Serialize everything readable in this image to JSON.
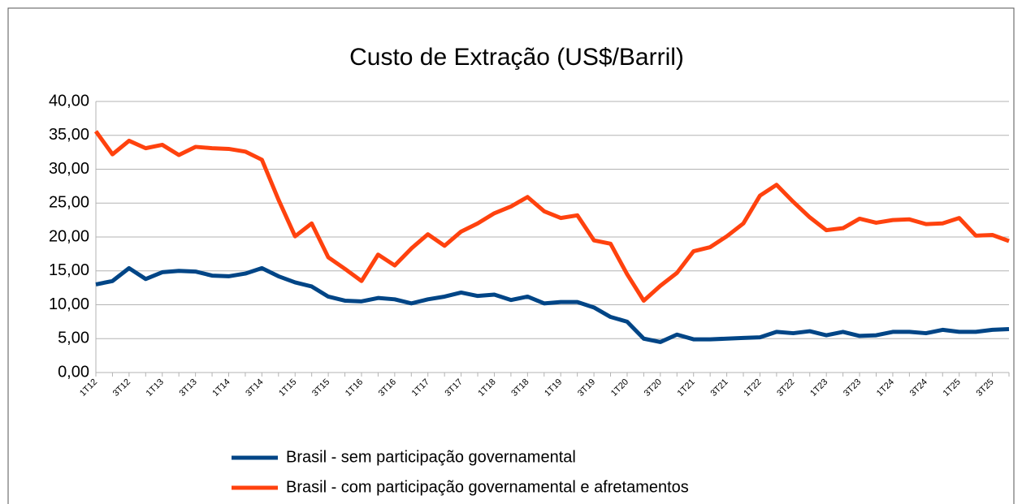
{
  "chart_data": {
    "type": "line",
    "title": "Custo de Extração (US$/Barril)",
    "categories": [
      "1T12",
      null,
      "3T12",
      null,
      "1T13",
      null,
      "3T13",
      null,
      "1T14",
      null,
      "3T14",
      null,
      "1T15",
      null,
      "3T15",
      null,
      "1T16",
      null,
      "3T16",
      null,
      "1T17",
      null,
      "3T17",
      null,
      "1T18",
      null,
      "3T18",
      null,
      "1T19",
      null,
      "3T19",
      null,
      "1T20",
      null,
      "3T20",
      null,
      "1T21",
      null,
      "3T21",
      null,
      "1T22",
      null,
      "3T22",
      null,
      "1T23",
      null,
      "3T23",
      null,
      "1T24",
      null,
      "3T24",
      null,
      "1T25",
      null,
      "3T25",
      null
    ],
    "series": [
      {
        "name": "Brasil - sem participação governamental",
        "color": "#004586",
        "values": [
          13.0,
          13.5,
          15.4,
          13.8,
          14.8,
          15.0,
          14.9,
          14.3,
          14.2,
          14.6,
          15.4,
          14.2,
          13.3,
          12.7,
          11.2,
          10.6,
          10.5,
          11.0,
          10.8,
          10.2,
          10.8,
          11.2,
          11.8,
          11.3,
          11.5,
          10.7,
          11.2,
          10.2,
          10.4,
          10.4,
          9.6,
          8.2,
          7.5,
          5.0,
          4.5,
          5.6,
          4.9,
          4.9,
          5.0,
          5.1,
          5.2,
          6.0,
          5.8,
          6.1,
          5.5,
          6.0,
          5.4,
          5.5,
          6.0,
          6.0,
          5.8,
          6.3,
          6.0,
          6.0,
          6.3,
          6.4
        ]
      },
      {
        "name": "Brasil - com participação governamental e afretamentos",
        "color": "#ff420e",
        "values": [
          35.6,
          32.2,
          34.2,
          33.1,
          33.6,
          32.1,
          33.3,
          33.1,
          33.0,
          32.6,
          31.4,
          25.5,
          20.1,
          22.0,
          17.0,
          15.3,
          13.5,
          17.4,
          15.8,
          18.3,
          20.4,
          18.7,
          20.8,
          22.0,
          23.5,
          24.5,
          25.9,
          23.8,
          22.8,
          23.2,
          19.5,
          19.0,
          14.5,
          10.6,
          12.8,
          14.7,
          17.9,
          18.5,
          20.1,
          22.0,
          26.1,
          27.7,
          25.2,
          22.9,
          21.0,
          21.3,
          22.7,
          22.1,
          22.5,
          22.6,
          21.9,
          22.0,
          22.8,
          20.2,
          20.3,
          19.4
        ]
      }
    ],
    "ylim": [
      0,
      40
    ],
    "yticks": [
      {
        "value": 0,
        "label": "0,00"
      },
      {
        "value": 5,
        "label": "5,00"
      },
      {
        "value": 10,
        "label": "10,00"
      },
      {
        "value": 15,
        "label": "15,00"
      },
      {
        "value": 20,
        "label": "20,00"
      },
      {
        "value": 25,
        "label": "25,00"
      },
      {
        "value": 30,
        "label": "30,00"
      },
      {
        "value": 35,
        "label": "35,00"
      },
      {
        "value": 40,
        "label": "40,00"
      }
    ],
    "grid": true,
    "legend": "bottom"
  }
}
